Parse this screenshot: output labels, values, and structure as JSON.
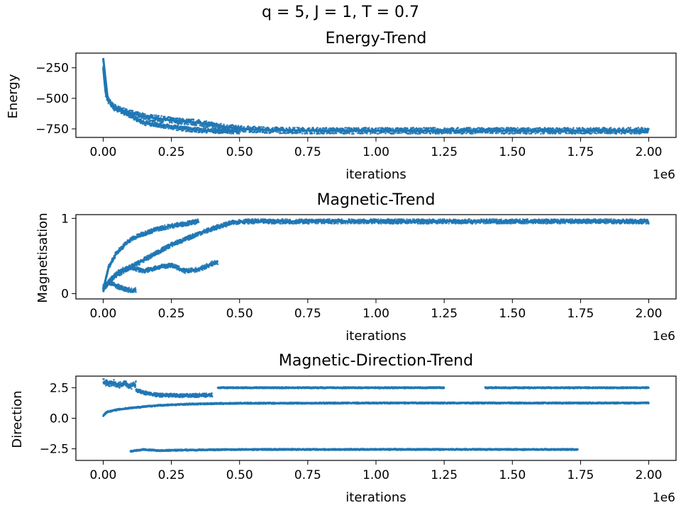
{
  "figure": {
    "suptitle": "q = 5, J = 1, T = 0.7",
    "series_color": "#1f77b4"
  },
  "chart_data": [
    {
      "type": "scatter",
      "title": "Energy-Trend",
      "xlabel": "iterations",
      "ylabel": "Energy",
      "x_offset_label": "1e6",
      "xlim": [
        -100000,
        2100000
      ],
      "ylim": [
        -820,
        -130
      ],
      "xticks": [
        0,
        250000,
        500000,
        750000,
        1000000,
        1250000,
        1500000,
        1750000,
        2000000
      ],
      "xtick_labels": [
        "0.00",
        "0.25",
        "0.50",
        "0.75",
        "1.00",
        "1.25",
        "1.50",
        "1.75",
        "2.00"
      ],
      "yticks": [
        -250,
        -500,
        -750
      ],
      "ytick_labels": [
        "−250",
        "−500",
        "−750"
      ],
      "grid": false,
      "bands": [
        {
          "x": [
            0,
            2500,
            10000,
            20000,
            40000,
            70000,
            100000,
            150000,
            200000,
            250000,
            300000,
            350000,
            400000,
            450000,
            500000,
            600000,
            800000,
            1000000,
            1500000,
            2000000
          ],
          "y": [
            -170,
            -320,
            -450,
            -530,
            -570,
            -600,
            -620,
            -650,
            -665,
            -680,
            -690,
            -700,
            -720,
            -735,
            -750,
            -760,
            -765,
            -765,
            -765,
            -765
          ],
          "spread": 25
        },
        {
          "x": [
            0,
            10000,
            40000,
            100000,
            150000,
            200000,
            250000,
            300000,
            350000,
            400000,
            450000,
            500000
          ],
          "y": [
            -250,
            -480,
            -580,
            -640,
            -700,
            -715,
            -735,
            -750,
            -760,
            -765,
            -768,
            -770
          ],
          "spread": 20
        }
      ]
    },
    {
      "type": "scatter",
      "title": "Magnetic-Trend",
      "xlabel": "iterations",
      "ylabel": "Magnetisation",
      "x_offset_label": "1e6",
      "xlim": [
        -100000,
        2100000
      ],
      "ylim": [
        -0.07,
        1.05
      ],
      "xticks": [
        0,
        250000,
        500000,
        750000,
        1000000,
        1250000,
        1500000,
        1750000,
        2000000
      ],
      "xtick_labels": [
        "0.00",
        "0.25",
        "0.50",
        "0.75",
        "1.00",
        "1.25",
        "1.50",
        "1.75",
        "2.00"
      ],
      "yticks": [
        1,
        0
      ],
      "ytick_labels": [
        "1",
        "0"
      ],
      "grid": false,
      "bands": [
        {
          "x": [
            0,
            20000,
            50000,
            100000,
            150000,
            200000,
            250000,
            300000,
            350000
          ],
          "y": [
            0.05,
            0.35,
            0.55,
            0.72,
            0.8,
            0.86,
            0.9,
            0.93,
            0.96
          ],
          "spread": 0.03
        },
        {
          "x": [
            0,
            20000,
            50000,
            100000,
            150000,
            200000,
            250000,
            300000,
            350000,
            400000,
            430000,
            470000,
            500000,
            2000000
          ],
          "y": [
            0.05,
            0.15,
            0.25,
            0.35,
            0.45,
            0.55,
            0.65,
            0.72,
            0.8,
            0.86,
            0.9,
            0.94,
            0.96,
            0.96
          ],
          "spread": 0.03
        },
        {
          "x": [
            0,
            30000,
            60000,
            100000,
            150000,
            200000,
            250000,
            300000,
            350000,
            400000,
            420000
          ],
          "y": [
            0.05,
            0.2,
            0.3,
            0.35,
            0.3,
            0.35,
            0.38,
            0.3,
            0.32,
            0.4,
            0.42
          ],
          "spread": 0.03
        },
        {
          "x": [
            0,
            20000,
            50000,
            80000,
            110000,
            120000
          ],
          "y": [
            0.1,
            0.15,
            0.1,
            0.06,
            0.04,
            0.05
          ],
          "spread": 0.03
        }
      ]
    },
    {
      "type": "scatter",
      "title": "Magnetic-Direction-Trend",
      "xlabel": "iterations",
      "ylabel": "Direction",
      "x_offset_label": "1e6",
      "xlim": [
        -100000,
        2100000
      ],
      "ylim": [
        -3.45,
        3.45
      ],
      "xticks": [
        0,
        250000,
        500000,
        750000,
        1000000,
        1250000,
        1500000,
        1750000,
        2000000
      ],
      "xtick_labels": [
        "0.00",
        "0.25",
        "0.50",
        "0.75",
        "1.00",
        "1.25",
        "1.50",
        "1.75",
        "2.00"
      ],
      "yticks": [
        2.5,
        0.0,
        -2.5
      ],
      "ytick_labels": [
        "2.5",
        "0.0",
        "−2.5"
      ],
      "grid": false,
      "bands": [
        {
          "x": [
            0,
            10000,
            50000,
            100000,
            150000,
            200000,
            300000,
            400000,
            500000,
            1000000,
            2000000
          ],
          "y": [
            0.2,
            0.5,
            0.7,
            0.85,
            0.95,
            1.05,
            1.15,
            1.2,
            1.23,
            1.25,
            1.25
          ],
          "spread": 0.06
        },
        {
          "x": [
            120000,
            150000,
            200000,
            300000,
            400000
          ],
          "y": [
            2.3,
            2.1,
            1.9,
            1.85,
            1.9
          ],
          "spread": 0.15
        },
        {
          "x": [
            420000,
            1250000
          ],
          "y": [
            2.5,
            2.5
          ],
          "spread": 0.06
        },
        {
          "x": [
            1400000,
            2000000
          ],
          "y": [
            2.5,
            2.5
          ],
          "spread": 0.06
        },
        {
          "x": [
            100000,
            150000,
            200000,
            300000,
            500000,
            1000000,
            1740000
          ],
          "y": [
            -2.7,
            -2.55,
            -2.65,
            -2.6,
            -2.55,
            -2.55,
            -2.55
          ],
          "spread": 0.06
        },
        {
          "x": [
            0,
            20000,
            40000,
            60000,
            80000,
            100000,
            120000
          ],
          "y": [
            3.0,
            2.8,
            2.9,
            2.7,
            2.95,
            2.6,
            2.8
          ],
          "spread": 0.25
        }
      ]
    }
  ]
}
